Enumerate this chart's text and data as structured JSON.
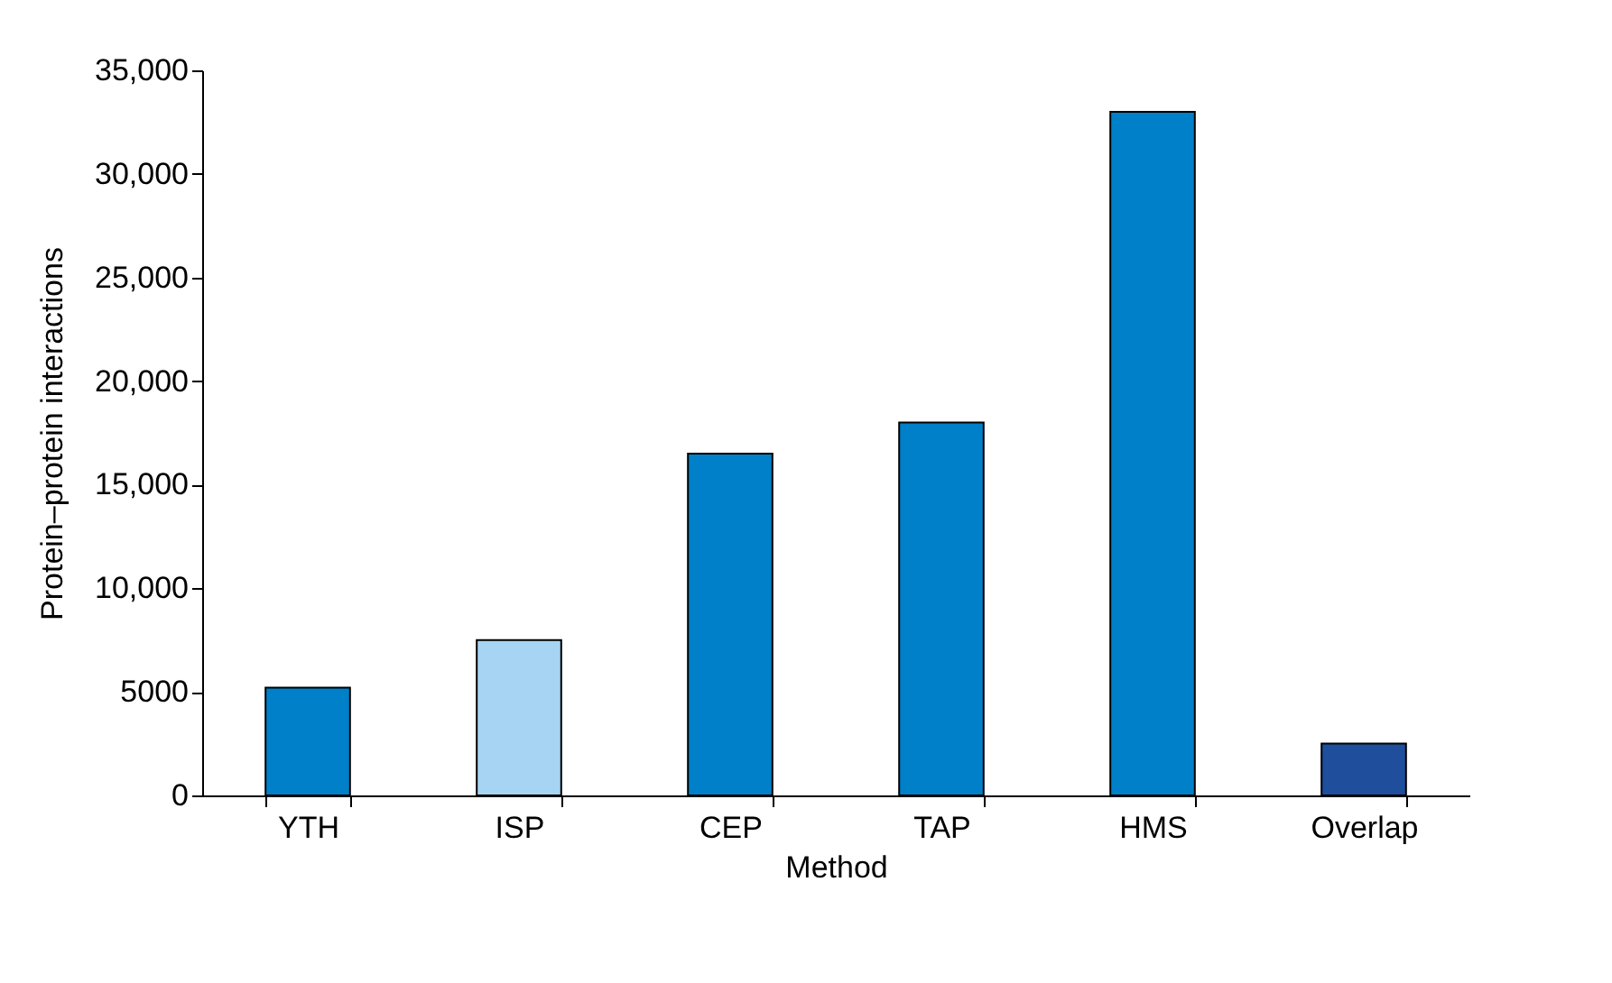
{
  "chart_data": {
    "type": "bar",
    "xlabel": "Method",
    "ylabel": "Protein–protein interactions",
    "categories": [
      "YTH",
      "ISP",
      "CEP",
      "TAP",
      "HMS",
      "Overlap"
    ],
    "values": [
      5200,
      7500,
      16500,
      18000,
      33000,
      2500
    ],
    "colors": [
      "#0080c8",
      "#a6d4f2",
      "#0080c8",
      "#0080c8",
      "#0080c8",
      "#1f4e9c"
    ],
    "ylim": [
      0,
      35000
    ],
    "yticks": [
      0,
      {
        "value": 5000,
        "label": "5000"
      },
      {
        "value": 10000,
        "label": "10,000"
      },
      {
        "value": 15000,
        "label": "15,000"
      },
      {
        "value": 20000,
        "label": "20,000"
      },
      {
        "value": 25000,
        "label": "25,000"
      },
      {
        "value": 30000,
        "label": "30,000"
      },
      {
        "value": 35000,
        "label": "35,000"
      }
    ],
    "grid": false
  }
}
